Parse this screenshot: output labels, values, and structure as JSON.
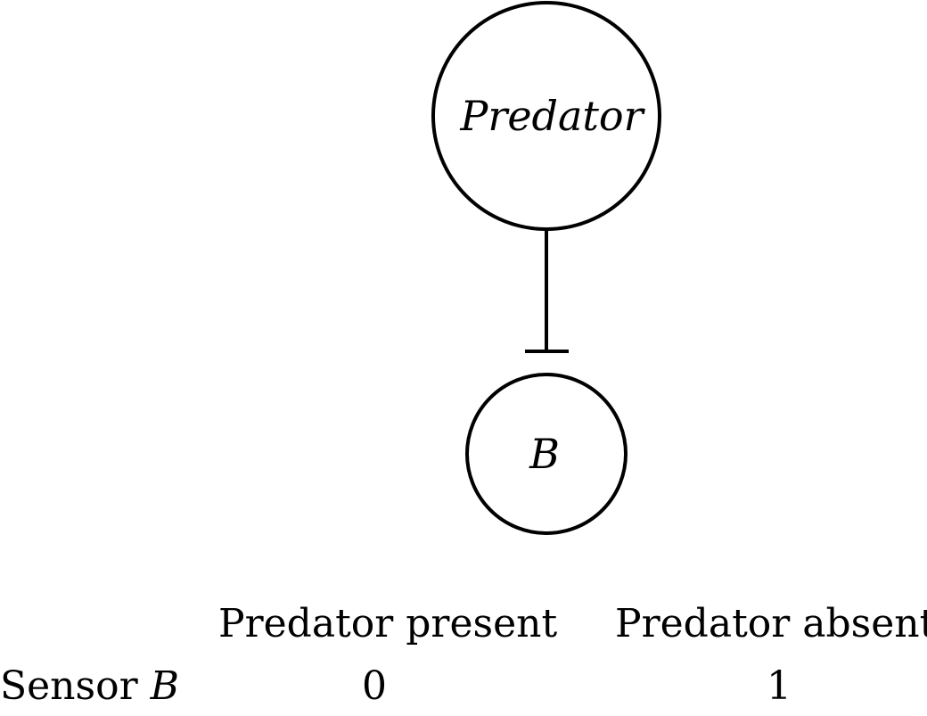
{
  "nodes": {
    "predator": {
      "label": "Predator"
    },
    "b": {
      "label": "B"
    }
  },
  "edge": {
    "type": "inhibition"
  },
  "table": {
    "columns": [
      "Predator present",
      "Predator absent"
    ],
    "row": {
      "label": "Sensor",
      "label_var": "B",
      "values": [
        "0",
        "1"
      ]
    }
  },
  "colors": {
    "stroke": "#000000",
    "background": "#ffffff"
  }
}
